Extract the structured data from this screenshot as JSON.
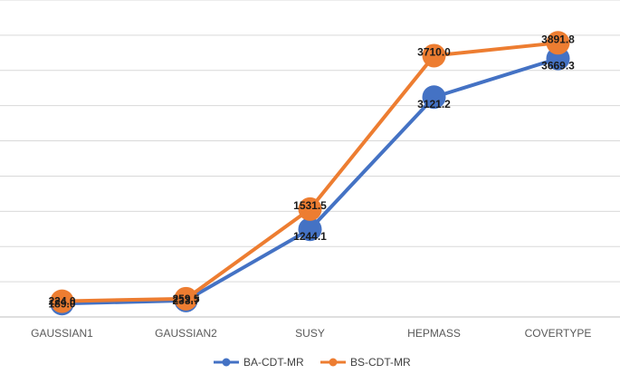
{
  "chart_data": {
    "type": "line",
    "categories": [
      "GAUSSIAN1",
      "GAUSSIAN2",
      "SUSY",
      "HEPMASS",
      "COVERTYPE"
    ],
    "series": [
      {
        "name": "BA-CDT-MR",
        "color": "#4472C4",
        "values": [
          189.0,
          233.7,
          1244.1,
          3121.2,
          3669.3
        ],
        "labels": [
          "189.0",
          "233.7",
          "1244.1",
          "3121.2",
          "3669.3"
        ]
      },
      {
        "name": "BS-CDT-MR",
        "color": "#ED7D31",
        "values": [
          224.0,
          259.5,
          1531.5,
          3710.0,
          3891.8
        ],
        "labels": [
          "224.0",
          "259.5",
          "1531.5",
          "3710.0",
          "3891.8"
        ]
      }
    ],
    "ylim": [
      0,
      4500
    ],
    "y_gridline_step": 500,
    "y_tick_labels_shown": false,
    "grid": true,
    "legend": "bottom"
  }
}
